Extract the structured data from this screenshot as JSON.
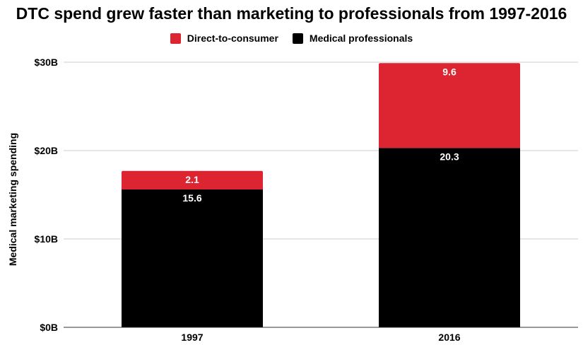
{
  "chart_data": {
    "type": "bar",
    "stacked": true,
    "title": "DTC spend grew faster than marketing to professionals from 1997-2016",
    "xlabel": "",
    "ylabel": "Medical marketing spending",
    "categories": [
      "1997",
      "2016"
    ],
    "series": [
      {
        "name": "Medical professionals",
        "values": [
          15.6,
          20.3
        ],
        "color": "#000000"
      },
      {
        "name": "Direct-to-consumer",
        "values": [
          2.1,
          9.6
        ],
        "color": "#dc2530"
      }
    ],
    "data_labels": [
      [
        "15.6",
        "20.3"
      ],
      [
        "2.1",
        "9.6"
      ]
    ],
    "ylim": [
      0,
      30
    ],
    "yticks": [
      0,
      10,
      20,
      30
    ],
    "ytick_labels": [
      "$0B",
      "$10B",
      "$20B",
      "$30B"
    ],
    "grid": true,
    "legend": {
      "position": "top",
      "order": [
        "Direct-to-consumer",
        "Medical professionals"
      ]
    },
    "gridline_color": "#cccccc"
  }
}
